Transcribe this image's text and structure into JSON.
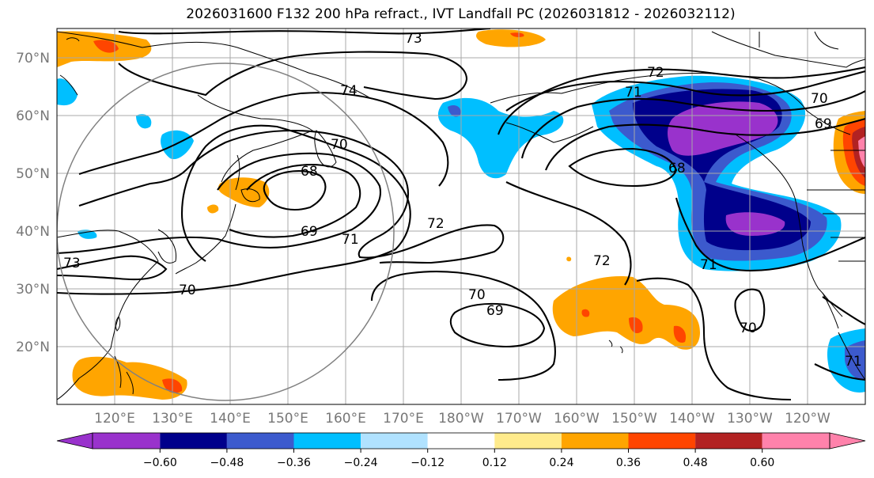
{
  "title": "2026031600 F132 200 hPa refract., IVT Landfall PC (2026031812 - 2026032112)",
  "colors": {
    "grid": "#a8a8a8",
    "coast": "#000000",
    "contour": "#000000",
    "circle": "#808080",
    "axis_label": "#777777"
  },
  "lat_labels": [
    "70°N",
    "60°N",
    "50°N",
    "40°N",
    "30°N",
    "20°N"
  ],
  "lon_labels": [
    "120°E",
    "130°E",
    "140°E",
    "150°E",
    "160°E",
    "170°E",
    "180°W",
    "170°W",
    "160°W",
    "150°W",
    "140°W",
    "130°W",
    "120°W"
  ],
  "colorbar": {
    "colors": [
      "#9932cc",
      "#00008b",
      "#3c5acd",
      "#00bfff",
      "#b0e2ff",
      "#ffffff",
      "#ffeb8c",
      "#ffa500",
      "#ff4500",
      "#b22222",
      "#ff82ab"
    ],
    "ticks": [
      "−0.60",
      "−0.48",
      "−0.36",
      "−0.24",
      "−0.12",
      "0.12",
      "0.24",
      "0.36",
      "0.48",
      "0.60"
    ]
  },
  "contour_labels": {
    "c73a": "73",
    "c74": "74",
    "c70a": "70",
    "c68a": "68",
    "c69a": "69",
    "c71a": "71",
    "c72a": "72",
    "c73b": "73",
    "c70b": "70",
    "c72b": "72",
    "c71b": "71",
    "c70c": "70",
    "c69b": "69",
    "c68b": "68",
    "c72c": "72",
    "c70d": "70",
    "c69c": "69",
    "c71c": "71",
    "c70e": "70",
    "c71d": "71"
  }
}
